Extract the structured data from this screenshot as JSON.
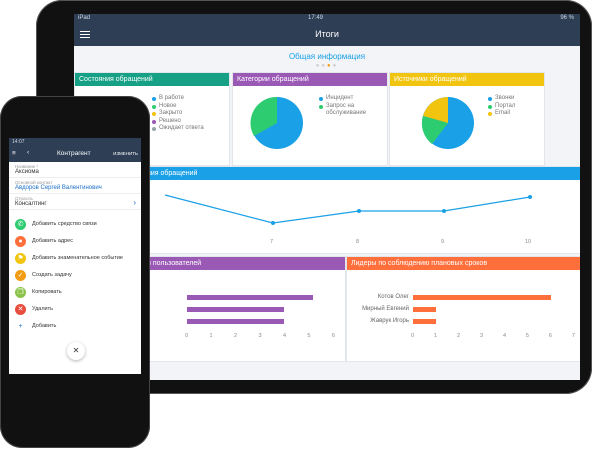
{
  "tablet": {
    "status": {
      "left": "iPad",
      "time": "17:49",
      "battery": "96 %"
    },
    "nav_title": "Итоги",
    "section_title": "Общая информация",
    "cards": {
      "states": {
        "title": "Состояния обращений",
        "legend": [
          "В работе",
          "Новое",
          "Закрыто",
          "Решено",
          "Ожидает ответа"
        ]
      },
      "categories": {
        "title": "Категории обращений",
        "legend": [
          "Инцидент",
          "Запрос на",
          "обслуживание"
        ]
      },
      "sources": {
        "title": "Источники обращений",
        "legend": [
          "Звонки",
          "Портал",
          "Email"
        ]
      },
      "dynamics": {
        "title": "ния обращений",
        "ticks": [
          "7",
          "8",
          "9",
          "10"
        ]
      },
      "users": {
        "title": "и пользователей",
        "ticks": [
          "0",
          "1",
          "2",
          "3",
          "4",
          "5",
          "6"
        ]
      },
      "leaders": {
        "title": "Лидеры по соблюдению плановых сроков",
        "names": [
          "Котов Олег",
          "Мирный Евгений",
          "Жаврук Игорь"
        ],
        "values": [
          6,
          1,
          1
        ],
        "ticks": [
          "0",
          "1",
          "2",
          "3",
          "4",
          "5",
          "6",
          "7"
        ]
      }
    },
    "colors": {
      "nav": "#2d3e55",
      "teal": "#16a085",
      "purple": "#9b59b6",
      "yellow": "#f1c40f",
      "blue": "#1aa0e6",
      "orange": "#ff6f3c",
      "green": "#2ecc71"
    }
  },
  "phone": {
    "status": "14:07",
    "nav_title": "Контрагент",
    "edit_label": "ИЗМЕНИТЬ",
    "fields": [
      {
        "label": "Название *",
        "value": "Аксиома"
      },
      {
        "label": "Основной контакт",
        "value": "Авдоров Сергей Валентинович"
      },
      {
        "label": "Отрасль",
        "value": "Консалтинг"
      }
    ],
    "actions": [
      {
        "label": "Добавить средство связи",
        "icon": "phone-icon"
      },
      {
        "label": "Добавить адрес",
        "icon": "location-icon"
      },
      {
        "label": "Добавить знаменательное событие",
        "icon": "flag-icon"
      },
      {
        "label": "Создать задачу",
        "icon": "task-icon"
      },
      {
        "label": "Копировать",
        "icon": "copy-icon"
      },
      {
        "label": "Удалить",
        "icon": "trash-icon"
      },
      {
        "label": "Добавить",
        "icon": "plus-icon"
      }
    ]
  }
}
